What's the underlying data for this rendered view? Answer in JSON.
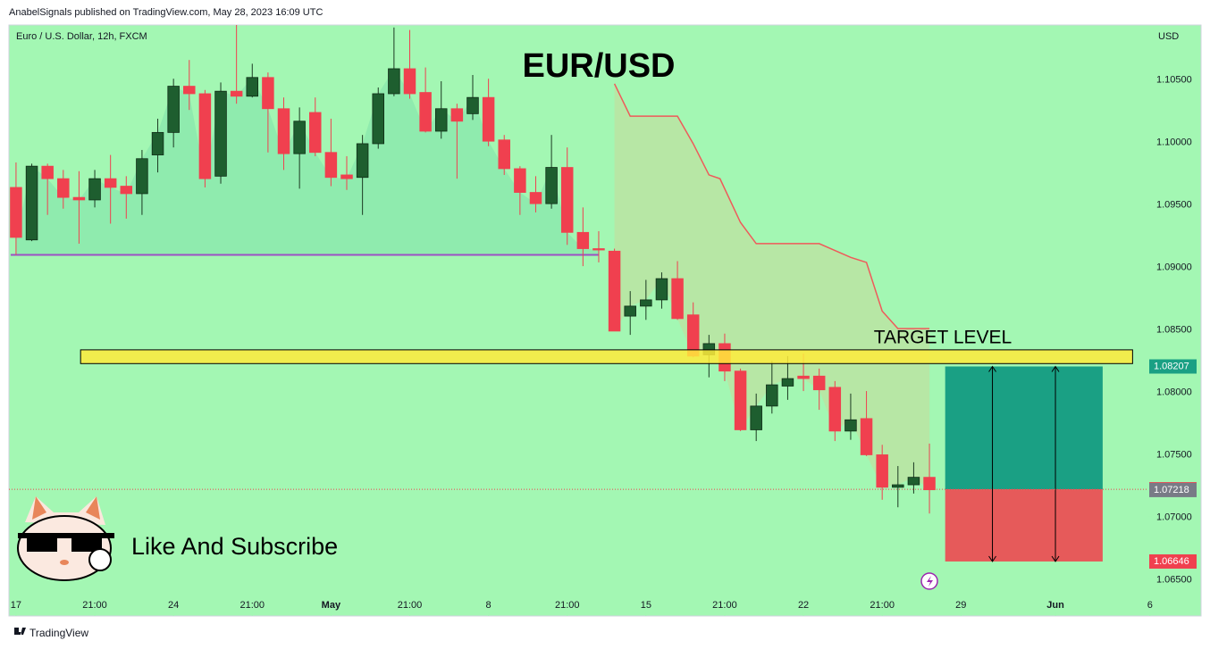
{
  "chart_data": {
    "type": "candlestick",
    "header": "AnabelSignals published on TradingView.com, May 28, 2023 16:09 UTC",
    "symbol": "Euro / U.S. Dollar, 12h, FXCM",
    "currency": "USD",
    "title": "EUR/USD",
    "note": "Like And Subscribe",
    "footer": "TradingView",
    "xlim": [
      -0.45,
      71.9
    ],
    "ylim": [
      1.0621,
      1.1094
    ],
    "yticks": [
      {
        "value": 1.105,
        "label": "1.10500"
      },
      {
        "value": 1.1,
        "label": "1.10000"
      },
      {
        "value": 1.095,
        "label": "1.09500"
      },
      {
        "value": 1.09,
        "label": "1.09000"
      },
      {
        "value": 1.085,
        "label": "1.08500"
      },
      {
        "value": 1.08,
        "label": "1.08000"
      },
      {
        "value": 1.075,
        "label": "1.07500"
      },
      {
        "value": 1.07,
        "label": "1.07000"
      },
      {
        "value": 1.065,
        "label": "1.06500"
      }
    ],
    "xticks": [
      {
        "value": 0,
        "label": "17"
      },
      {
        "value": 5,
        "label": "21:00"
      },
      {
        "value": 10,
        "label": "24"
      },
      {
        "value": 15,
        "label": "21:00"
      },
      {
        "value": 20,
        "label": "May"
      },
      {
        "value": 25,
        "label": "21:00"
      },
      {
        "value": 30,
        "label": "8"
      },
      {
        "value": 35,
        "label": "21:00"
      },
      {
        "value": 40,
        "label": "15"
      },
      {
        "value": 45,
        "label": "21:00"
      },
      {
        "value": 50,
        "label": "22"
      },
      {
        "value": 55,
        "label": "21:00"
      },
      {
        "value": 60,
        "label": "29"
      },
      {
        "value": 66,
        "label": "Jun"
      },
      {
        "value": 72,
        "label": "6"
      }
    ],
    "up_color": "#1e5e2f",
    "down_color": "#f0404f",
    "open": [
      1.0964,
      1.0922,
      1.0981,
      1.0971,
      1.0956,
      1.0954,
      1.0971,
      1.0965,
      1.0959,
      1.099,
      1.1008,
      1.1045,
      1.1039,
      1.0973,
      1.1041,
      1.1037,
      1.1052,
      1.1027,
      1.0991,
      1.1024,
      1.0992,
      1.0974,
      1.0972,
      1.0999,
      1.1039,
      1.1059,
      1.104,
      1.1009,
      1.1027,
      1.1023,
      1.1036,
      1.1002,
      1.0979,
      1.096,
      1.0951,
      1.098,
      1.0928,
      1.0915,
      1.0913,
      1.0861,
      1.0869,
      1.0874,
      1.0891,
      1.0862,
      1.083,
      1.0839,
      1.0817,
      1.077,
      1.0789,
      1.0805,
      1.0813,
      1.0813,
      1.0804,
      1.0769,
      1.0779,
      1.075,
      1.0724,
      1.0726,
      1.0732
    ],
    "high": [
      1.0984,
      1.0983,
      1.0983,
      1.0978,
      1.0977,
      1.0978,
      1.099,
      1.0973,
      1.0994,
      1.1019,
      1.1051,
      1.1066,
      1.1042,
      1.1048,
      1.1094,
      1.1063,
      1.1056,
      1.1036,
      1.1028,
      1.1036,
      1.1019,
      1.0989,
      1.1006,
      1.1044,
      1.1092,
      1.109,
      1.106,
      1.1049,
      1.1031,
      1.1054,
      1.1051,
      1.1006,
      1.0981,
      1.0973,
      1.1006,
      1.0996,
      1.0948,
      1.0929,
      1.0915,
      1.0881,
      1.089,
      1.0896,
      1.0905,
      1.0872,
      1.0846,
      1.0847,
      1.0819,
      1.0799,
      1.0825,
      1.0829,
      1.0831,
      1.0819,
      1.0809,
      1.0799,
      1.0801,
      1.0758,
      1.0741,
      1.0744,
      1.0759
    ],
    "low": [
      1.091,
      1.0921,
      1.0942,
      1.0947,
      1.0919,
      1.0948,
      1.0935,
      1.0939,
      1.0942,
      1.0976,
      1.0996,
      1.1026,
      1.0964,
      1.0967,
      1.1031,
      1.1036,
      1.0992,
      1.0978,
      1.0963,
      1.0989,
      1.0965,
      1.0962,
      1.0942,
      1.0995,
      1.1037,
      1.1035,
      1.1008,
      1.1003,
      1.0971,
      1.1018,
      1.0997,
      1.0974,
      1.0942,
      1.0944,
      1.0947,
      1.0918,
      1.0901,
      1.0904,
      1.0849,
      1.0846,
      1.0858,
      1.0867,
      1.0858,
      1.0828,
      1.0812,
      1.0809,
      1.0769,
      1.0761,
      1.0783,
      1.0794,
      1.0801,
      1.0786,
      1.0761,
      1.0762,
      1.0749,
      1.0714,
      1.0708,
      1.0719,
      1.0703
    ],
    "close": [
      1.0924,
      1.0981,
      1.0971,
      1.0956,
      1.0954,
      1.0971,
      1.0964,
      1.0959,
      1.0987,
      1.1008,
      1.1045,
      1.1039,
      1.0971,
      1.1041,
      1.1037,
      1.1052,
      1.1027,
      1.0991,
      1.1017,
      1.0992,
      1.0972,
      1.0971,
      1.0999,
      1.1039,
      1.1059,
      1.1039,
      1.1009,
      1.1027,
      1.1017,
      1.1036,
      1.1001,
      1.0979,
      1.096,
      1.0951,
      1.098,
      1.0928,
      1.0915,
      1.0914,
      1.0849,
      1.0869,
      1.0874,
      1.0891,
      1.0859,
      1.0829,
      1.0839,
      1.0817,
      1.077,
      1.0789,
      1.0806,
      1.0811,
      1.0811,
      1.0802,
      1.0769,
      1.0778,
      1.075,
      1.0724,
      1.0726,
      1.0732,
      1.0722
    ],
    "trail": {
      "color": "#ef5a5a",
      "x": [
        38,
        39,
        42,
        43,
        44,
        44.7,
        46,
        47,
        51,
        53,
        54,
        55,
        56,
        58
      ],
      "values": [
        1.1047,
        1.1021,
        1.1021,
        1.0999,
        1.0974,
        1.0971,
        1.0936,
        1.0919,
        1.0919,
        1.0908,
        1.0904,
        1.0865,
        1.0851,
        1.0851
      ]
    },
    "baseline": {
      "value": 1.091,
      "x": [
        -0.34,
        37
      ],
      "color": "#9c4fc4"
    },
    "target_zone": {
      "label": "TARGET LEVEL",
      "low": 1.0823,
      "high": 1.0834,
      "x": [
        4.1,
        70.9
      ],
      "color": "#ffeb3b"
    },
    "position": {
      "target": 1.08207,
      "entry": 1.07224,
      "stop": 1.06646,
      "x": [
        59,
        69
      ],
      "profit_color": "#1aa084",
      "loss_color": "#e65a5a"
    },
    "bid": 1.07218
  }
}
